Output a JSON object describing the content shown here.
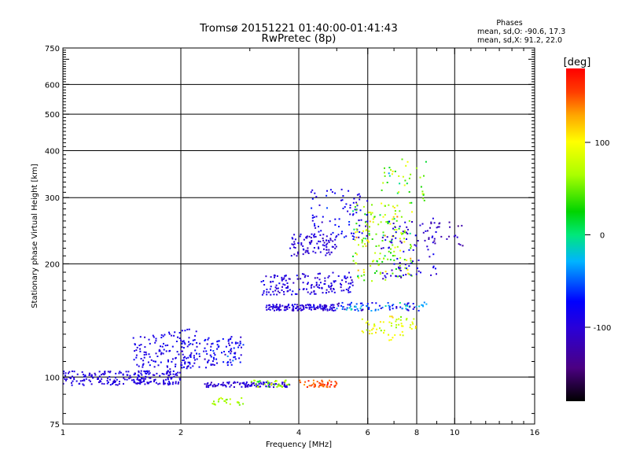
{
  "chart_data": {
    "type": "scatter",
    "title": "Tromsø 20151221 01:40:00-01:41:43",
    "subtitle": "RwPretec (8p)",
    "info": {
      "heading": "Phases",
      "line_o": "mean, sd,O: -90.6, 17.3",
      "line_x": "mean, sd,X:  91.2, 22.0"
    },
    "xlabel": "Frequency [MHz]",
    "ylabel": "Stationary phase Virtual Height [km]",
    "xscale": "log2",
    "yscale": "log",
    "xlim": [
      1,
      16
    ],
    "ylim": [
      75,
      750
    ],
    "xticks": [
      1,
      2,
      4,
      6,
      8,
      10,
      16
    ],
    "xtick_labels": [
      "1",
      "2",
      "4",
      "6",
      "8",
      "10",
      "16"
    ],
    "x_gridlines": [
      2,
      4,
      6,
      8,
      10
    ],
    "yticks": [
      75,
      100,
      200,
      300,
      400,
      500,
      600,
      750
    ],
    "ytick_labels": [
      "75",
      "100",
      "200",
      "300",
      "400",
      "500",
      "600",
      "750"
    ],
    "y_gridlines": [
      100,
      200,
      300,
      400,
      500,
      600
    ],
    "grid": true,
    "colorbar": {
      "label": "[deg]",
      "range": [
        -180,
        180
      ],
      "ticks": [
        100,
        0,
        -100
      ],
      "tick_labels": [
        "100",
        "0",
        "-100"
      ],
      "colormap": "rainbow (black-purple-blue-cyan-green-yellow-red)"
    },
    "clusters": [
      {
        "x0": 1.0,
        "x1": 2.0,
        "y0": 95,
        "y1": 104,
        "phase_mean": -95,
        "phase_sd": 12,
        "count": 220,
        "slope": 0.05
      },
      {
        "x0": 1.5,
        "x1": 2.2,
        "y0": 100,
        "y1": 135,
        "phase_mean": -90,
        "phase_sd": 15,
        "count": 140,
        "slope": 0.25
      },
      {
        "x0": 2.0,
        "x1": 2.9,
        "y0": 104,
        "y1": 130,
        "phase_mean": -85,
        "phase_sd": 30,
        "count": 120,
        "slope": 0.2
      },
      {
        "x0": 2.3,
        "x1": 3.8,
        "y0": 94,
        "y1": 97,
        "phase_mean": -100,
        "phase_sd": 20,
        "count": 110,
        "slope": 0
      },
      {
        "x0": 3.0,
        "x1": 3.8,
        "y0": 94,
        "y1": 98,
        "phase_mean": 60,
        "phase_sd": 40,
        "count": 35,
        "slope": 0
      },
      {
        "x0": 4.0,
        "x1": 5.0,
        "y0": 94,
        "y1": 98,
        "phase_mean": 150,
        "phase_sd": 25,
        "count": 50,
        "slope": 0
      },
      {
        "x0": 2.4,
        "x1": 2.9,
        "y0": 84,
        "y1": 88,
        "phase_mean": 65,
        "phase_sd": 20,
        "count": 25,
        "slope": 0
      },
      {
        "x0": 3.3,
        "x1": 5.0,
        "y0": 150,
        "y1": 156,
        "phase_mean": -100,
        "phase_sd": 20,
        "count": 140,
        "slope": 0
      },
      {
        "x0": 5.0,
        "x1": 8.5,
        "y0": 150,
        "y1": 158,
        "phase_mean": -60,
        "phase_sd": 60,
        "count": 90,
        "slope": 0
      },
      {
        "x0": 3.2,
        "x1": 5.5,
        "y0": 165,
        "y1": 190,
        "phase_mean": -95,
        "phase_sd": 20,
        "count": 160,
        "slope": 0.1
      },
      {
        "x0": 3.8,
        "x1": 5.0,
        "y0": 210,
        "y1": 240,
        "phase_mean": -100,
        "phase_sd": 15,
        "count": 90,
        "slope": 0
      },
      {
        "x0": 4.3,
        "x1": 6.0,
        "y0": 230,
        "y1": 320,
        "phase_mean": -85,
        "phase_sd": 25,
        "count": 90,
        "slope": 0
      },
      {
        "x0": 5.5,
        "x1": 7.8,
        "y0": 180,
        "y1": 290,
        "phase_mean": 60,
        "phase_sd": 60,
        "count": 170,
        "slope": 0
      },
      {
        "x0": 5.8,
        "x1": 8.0,
        "y0": 125,
        "y1": 145,
        "phase_mean": 85,
        "phase_sd": 30,
        "count": 60,
        "slope": 0
      },
      {
        "x0": 6.5,
        "x1": 9.0,
        "y0": 180,
        "y1": 270,
        "phase_mean": -95,
        "phase_sd": 25,
        "count": 90,
        "slope": 0.1
      },
      {
        "x0": 8.5,
        "x1": 10.5,
        "y0": 220,
        "y1": 260,
        "phase_mean": -120,
        "phase_sd": 20,
        "count": 25,
        "slope": 0
      },
      {
        "x0": 6.5,
        "x1": 8.5,
        "y0": 290,
        "y1": 380,
        "phase_mean": 40,
        "phase_sd": 70,
        "count": 40,
        "slope": 0
      }
    ]
  }
}
